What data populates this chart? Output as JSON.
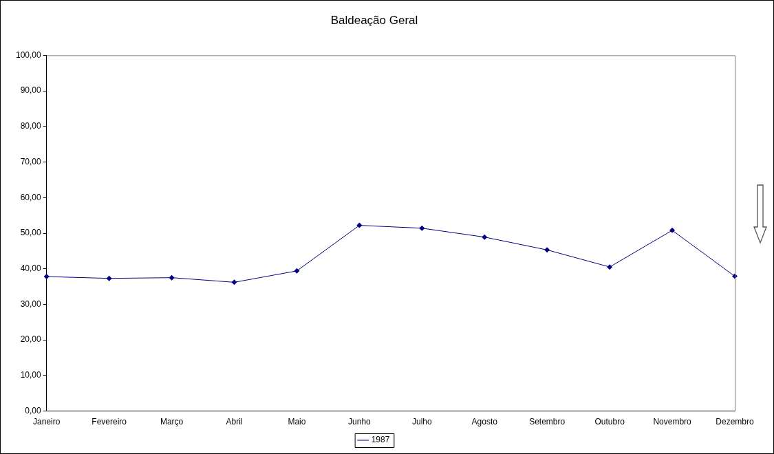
{
  "chart_data": {
    "type": "line",
    "title": "Baldeação Geral",
    "categories": [
      "Janeiro",
      "Fevereiro",
      "Março",
      "Abril",
      "Maio",
      "Junho",
      "Julho",
      "Agosto",
      "Setembro",
      "Outubro",
      "Novembro",
      "Dezembro"
    ],
    "series": [
      {
        "name": "1987",
        "color": "#000080",
        "values": [
          37.8,
          37.3,
          37.5,
          36.2,
          39.4,
          52.2,
          51.4,
          48.9,
          45.3,
          40.5,
          50.8,
          37.9
        ]
      }
    ],
    "ylim": [
      0,
      100
    ],
    "yticks": [
      {
        "value": 0,
        "label": "0,00"
      },
      {
        "value": 10,
        "label": "10,00"
      },
      {
        "value": 20,
        "label": "20,00"
      },
      {
        "value": 30,
        "label": "30,00"
      },
      {
        "value": 40,
        "label": "40,00"
      },
      {
        "value": 50,
        "label": "50,00"
      },
      {
        "value": 60,
        "label": "60,00"
      },
      {
        "value": 70,
        "label": "70,00"
      },
      {
        "value": 80,
        "label": "80,00"
      },
      {
        "value": 90,
        "label": "90,00"
      },
      {
        "value": 100,
        "label": "100,00"
      }
    ],
    "grid": false,
    "legend": "bottom",
    "marker": "diamond",
    "line_style": "solid"
  }
}
